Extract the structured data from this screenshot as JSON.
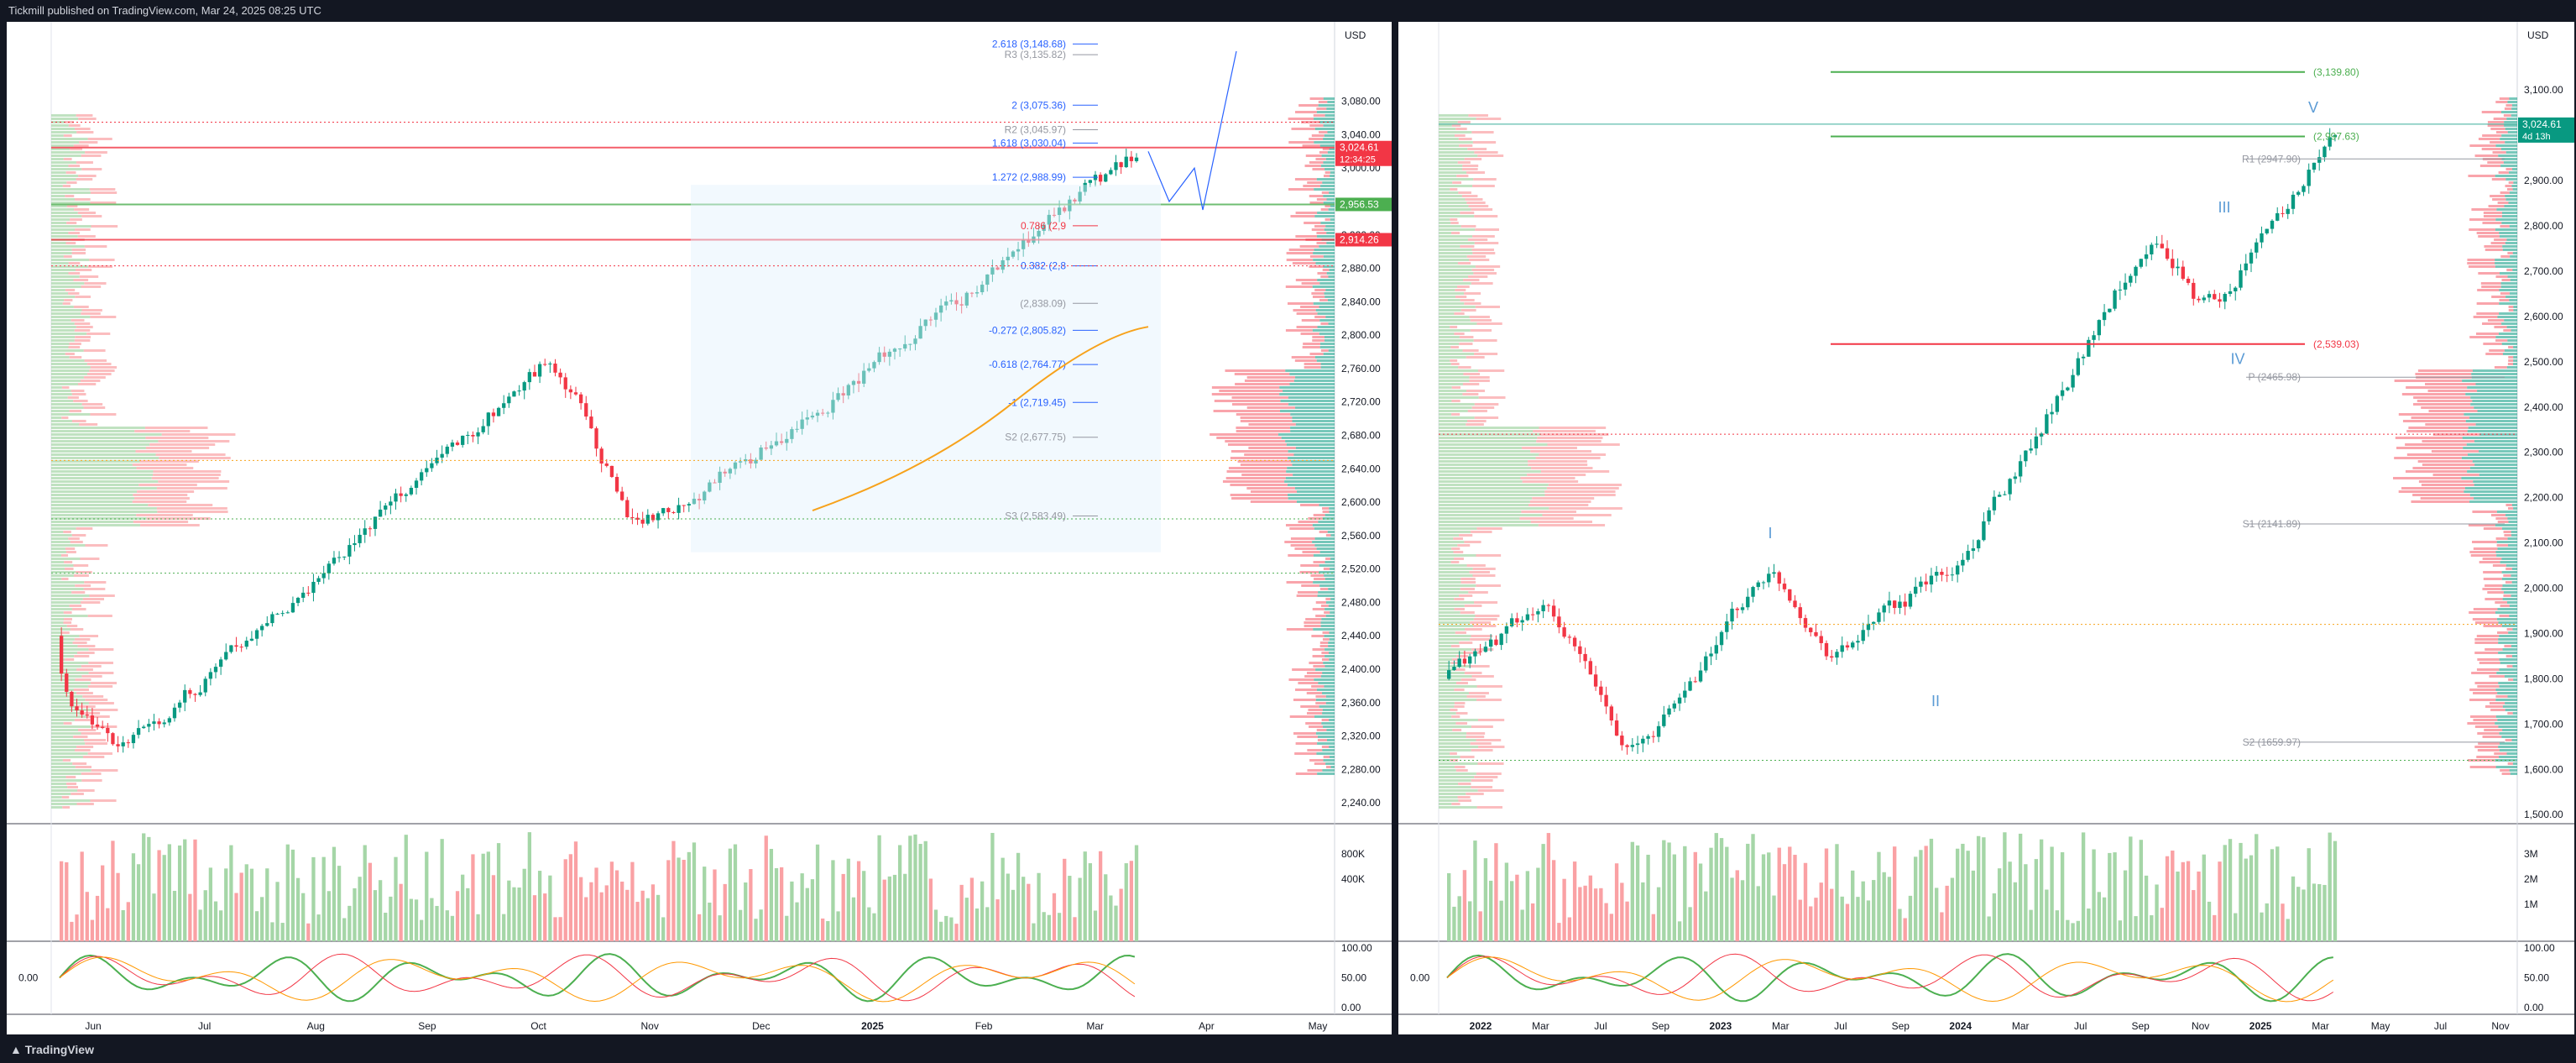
{
  "header": {
    "publish_text": "Tickmill published on TradingView.com, Mar 24, 2025 08:25 UTC"
  },
  "footer": {
    "logo_text": "TradingView"
  },
  "charts": [
    {
      "id": "left",
      "currency": "USD",
      "price_ticks": [
        2240,
        2280,
        2320,
        2360,
        2400,
        2440,
        2480,
        2520,
        2560,
        2600,
        2640,
        2680,
        2720,
        2760,
        2800,
        2840,
        2880,
        2920,
        2960,
        3000,
        3040,
        3080
      ],
      "price_tick_labels": [
        "2,240.00",
        "2,280.00",
        "2,320.00",
        "2,360.00",
        "2,400.00",
        "2,440.00",
        "2,480.00",
        "2,520.00",
        "2,560.00",
        "2,600.00",
        "2,640.00",
        "2,680.00",
        "2,720.00",
        "2,760.00",
        "2,800.00",
        "2,840.00",
        "2,880.00",
        "2,920.00",
        "2,960.00",
        "3,000.00",
        "3,040.00",
        "3,080.00"
      ],
      "ylim": [
        2215,
        3145
      ],
      "time_labels": [
        "Jun",
        "Jul",
        "Aug",
        "Sep",
        "Oct",
        "Nov",
        "Dec",
        "2025",
        "Feb",
        "Mar",
        "Apr",
        "May"
      ],
      "volume_labels": [
        "800K",
        "400K"
      ],
      "osc_labels": [
        "100.00",
        "50.00",
        "0.00"
      ],
      "osc_left_label": "0.00",
      "badges": [
        {
          "text": "3,024.61",
          "sub": "12:34:25",
          "price": 3024.61,
          "color": "#f23645"
        },
        {
          "text": "2,956.53",
          "price": 2956.53,
          "color": "#4caf50"
        },
        {
          "text": "2,914.26",
          "price": 2914.26,
          "color": "#f23645"
        }
      ],
      "fib_labels": [
        {
          "text": "2.618 (3,148.68)",
          "price": 3148.68,
          "color": "#2962ff"
        },
        {
          "text": "R3 (3,135.82)",
          "price": 3135.82,
          "color": "#9598a1"
        },
        {
          "text": "2 (3,075.36)",
          "price": 3075.36,
          "color": "#2962ff"
        },
        {
          "text": "R2 (3,045.97)",
          "price": 3045.97,
          "color": "#9598a1"
        },
        {
          "text": "1.618 (3,030.04)",
          "price": 3030.04,
          "color": "#2962ff"
        },
        {
          "text": "1.272 (2,988.99)",
          "price": 2988.99,
          "color": "#2962ff"
        },
        {
          "text": "0.786 (2,9",
          "price": 2931,
          "color": "#f23645"
        },
        {
          "text": "0.382 (2,8",
          "price": 2883,
          "color": "#2962ff"
        },
        {
          "text": "(2,838.09)",
          "price": 2838.09,
          "color": "#9598a1"
        },
        {
          "text": "-0.272 (2,805.82)",
          "price": 2805.82,
          "color": "#2962ff"
        },
        {
          "text": "-0.618 (2,764.77)",
          "price": 2764.77,
          "color": "#2962ff"
        },
        {
          "text": "-1 (2,719.45)",
          "price": 2719.45,
          "color": "#2962ff"
        },
        {
          "text": "S2 (2,677.75)",
          "price": 2677.75,
          "color": "#9598a1"
        },
        {
          "text": "S3 (2,583.49)",
          "price": 2583.49,
          "color": "#9598a1"
        }
      ]
    },
    {
      "id": "right",
      "currency": "USD",
      "price_ticks": [
        1500,
        1600,
        1700,
        1800,
        1900,
        2000,
        2100,
        2200,
        2300,
        2400,
        2500,
        2600,
        2700,
        2800,
        2900,
        3000,
        3100
      ],
      "price_tick_labels": [
        "1,500.00",
        "1,600.00",
        "1,700.00",
        "1,800.00",
        "1,900.00",
        "2,000.00",
        "2,100.00",
        "2,200.00",
        "2,300.00",
        "2,400.00",
        "2,500.00",
        "2,600.00",
        "2,700.00",
        "2,800.00",
        "2,900.00",
        "3,000.00",
        "3,100.00"
      ],
      "ylim": [
        1480,
        3195
      ],
      "time_labels": [
        "2022",
        "Mar",
        "Jul",
        "Sep",
        "2023",
        "Mar",
        "Jul",
        "Sep",
        "2024",
        "Mar",
        "Jul",
        "Sep",
        "Nov",
        "2025",
        "Mar",
        "May",
        "Jul",
        "Nov"
      ],
      "volume_labels": [
        "3M",
        "2M",
        "1M"
      ],
      "osc_labels": [
        "100.00",
        "50.00",
        "0.00"
      ],
      "osc_left_label": "0.00",
      "badges": [
        {
          "text": "3,024.61",
          "sub": "4d 13h",
          "price": 3024.61,
          "color": "#089981"
        }
      ],
      "level_labels": [
        {
          "text": "(3,139.80)",
          "price": 3139.8,
          "color": "#4caf50"
        },
        {
          "text": "(2,997.63)",
          "price": 2997.63,
          "color": "#4caf50"
        },
        {
          "text": "R1 (2947.90)",
          "price": 2947.9,
          "color": "#9598a1"
        },
        {
          "text": "(2,539.03)",
          "price": 2539.03,
          "color": "#f23645"
        },
        {
          "text": "P (2465.98)",
          "price": 2465.98,
          "color": "#9598a1"
        },
        {
          "text": "S1 (2141.89)",
          "price": 2141.89,
          "color": "#9598a1"
        },
        {
          "text": "S2 (1659.97)",
          "price": 1659.97,
          "color": "#9598a1"
        }
      ],
      "wave_labels": [
        {
          "text": "I",
          "price": 2110
        },
        {
          "text": "II",
          "price": 1740
        },
        {
          "text": "III",
          "price": 2830
        },
        {
          "text": "IV",
          "price": 2495
        },
        {
          "text": "V",
          "price": 3050
        }
      ]
    }
  ],
  "colors": {
    "up": "#089981",
    "down": "#f23645",
    "up_light": "#a5d6a7",
    "down_light": "#faa1a4",
    "fib": "#2962ff",
    "ma": "#f7a21b"
  }
}
